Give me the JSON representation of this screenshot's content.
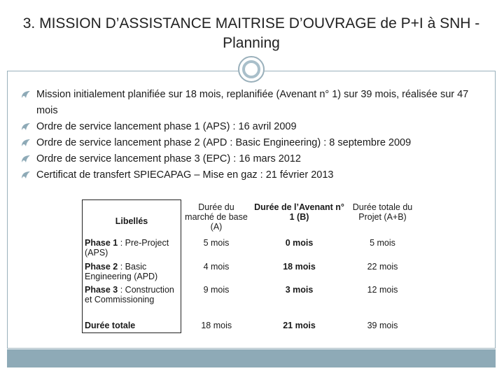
{
  "title": "3. MISSION D’ASSISTANCE MAITRISE D’OUVRAGE de P+I à SNH - Planning",
  "bullets": [
    "Mission initialement planifiée sur 18 mois, replanifiée (Avenant n° 1) sur 39 mois, réalisée sur 47 mois",
    "Ordre de service lancement phase 1 (APS) : 16 avril 2009",
    "Ordre de service lancement phase 2 (APD : Basic Engineering) : 8 septembre 2009",
    "Ordre de service lancement phase 3 (EPC) : 16 mars 2012",
    "Certificat de transfert SPIECAPAG – Mise en gaz : 21 février 2013"
  ],
  "table": {
    "headers": {
      "libelles": "Libellés",
      "base": "Durée du marché de base (A)",
      "avenant": "Durée de l’Avenant n° 1 (B)",
      "total": "Durée totale du Projet (A+B)"
    },
    "rows": [
      {
        "label_bold": "Phase 1",
        "label_rest": " : Pre-Project (APS)",
        "base": "5 mois",
        "avenant": "0 mois",
        "total": "5 mois"
      },
      {
        "label_bold": "Phase 2",
        "label_rest": " : Basic Engineering (APD)",
        "base": "4 mois",
        "avenant": "18 mois",
        "total": "22 mois"
      },
      {
        "label_bold": "Phase 3",
        "label_rest": " : Construction et Commissioning",
        "base": "9 mois",
        "avenant": "3 mois",
        "total": "12 mois"
      },
      {
        "label_bold": "Durée totale",
        "label_rest": "",
        "base": "18 mois",
        "avenant": "21 mois",
        "total": "39 mois"
      }
    ]
  },
  "colors": {
    "accent": "#8eaab7",
    "frame": "#9ab0bb"
  },
  "icons": {
    "bullet": "fleuron-bullet-icon",
    "ornament": "circle-ornament"
  }
}
